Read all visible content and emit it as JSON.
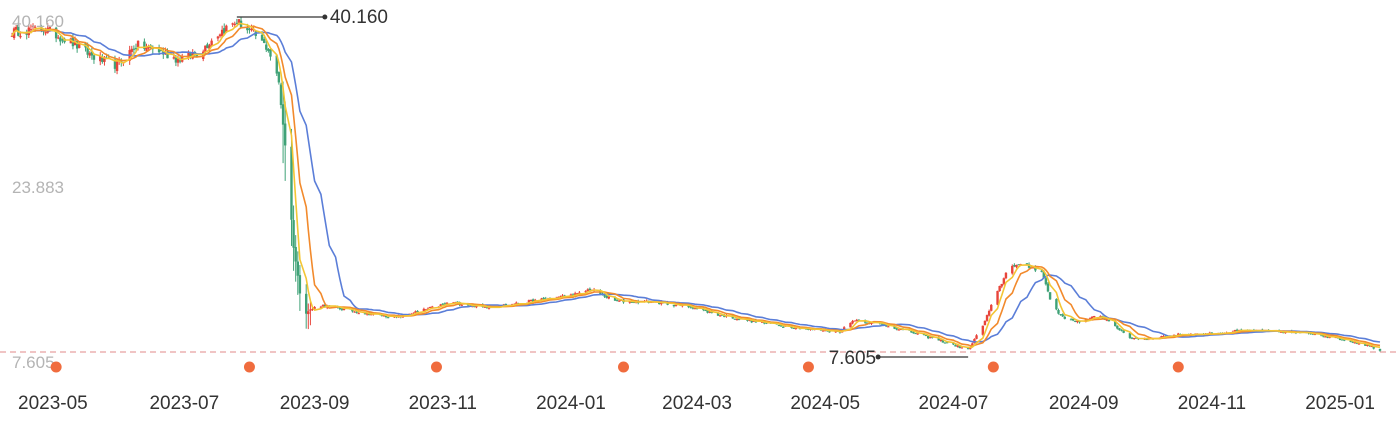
{
  "chart_data": {
    "type": "candlestick",
    "title": "",
    "xlabel": "",
    "ylabel": "",
    "x_range": [
      "2023-04-10",
      "2025-01-20"
    ],
    "ylim": [
      7.605,
      40.16
    ],
    "y_ticks": [
      "40.160",
      "23.883",
      "7.605"
    ],
    "x_ticks": [
      "2023-05",
      "2023-07",
      "2023-09",
      "2023-11",
      "2024-01",
      "2024-03",
      "2024-05",
      "2024-07",
      "2024-09",
      "2024-11",
      "2025-01"
    ],
    "x_tick_dates": [
      "2023-05-01",
      "2023-07-01",
      "2023-09-01",
      "2023-11-01",
      "2024-01-01",
      "2024-03-01",
      "2024-05-01",
      "2024-07-01",
      "2024-09-01",
      "2024-11-01",
      "2025-01-01"
    ],
    "max_annotation": {
      "label": "40.160",
      "date": "2023-07-26",
      "value": 40.16
    },
    "min_annotation": {
      "label": "7.605",
      "date": "2024-07-08",
      "value": 7.605
    },
    "reference_line": {
      "value": 7.605,
      "style": "dashed",
      "color": "#e8a0a0"
    },
    "event_markers": [
      "2023-05-01",
      "2023-08-01",
      "2023-10-29",
      "2024-01-26",
      "2024-04-23",
      "2024-07-20",
      "2024-10-16"
    ],
    "colors": {
      "up": "#e8443a",
      "down": "#3fa277",
      "ma_short": "#f3c534",
      "ma_mid": "#f28a2c",
      "ma_long": "#5b7ed8",
      "marker": "#f06c3e"
    },
    "price_path": [
      [
        "2023-04-10",
        39.0
      ],
      [
        "2023-04-25",
        39.3
      ],
      [
        "2023-05-08",
        38.0
      ],
      [
        "2023-05-20",
        36.4
      ],
      [
        "2023-05-30",
        35.7
      ],
      [
        "2023-06-08",
        37.7
      ],
      [
        "2023-06-18",
        37.2
      ],
      [
        "2023-06-28",
        36.3
      ],
      [
        "2023-07-08",
        37.0
      ],
      [
        "2023-07-18",
        39.0
      ],
      [
        "2023-07-26",
        40.0
      ],
      [
        "2023-08-03",
        38.8
      ],
      [
        "2023-08-10",
        37.3
      ],
      [
        "2023-08-15",
        34.0
      ],
      [
        "2023-08-18",
        28.0
      ],
      [
        "2023-08-22",
        18.0
      ],
      [
        "2023-08-25",
        13.5
      ],
      [
        "2023-08-28",
        11.5
      ],
      [
        "2023-09-03",
        12.2
      ],
      [
        "2023-09-10",
        12.0
      ],
      [
        "2023-09-25",
        11.4
      ],
      [
        "2023-10-10",
        11.0
      ],
      [
        "2023-10-28",
        12.0
      ],
      [
        "2023-11-05",
        12.5
      ],
      [
        "2023-11-20",
        12.0
      ],
      [
        "2023-12-05",
        12.3
      ],
      [
        "2023-12-20",
        12.8
      ],
      [
        "2024-01-05",
        13.3
      ],
      [
        "2024-01-10",
        13.8
      ],
      [
        "2024-01-22",
        12.6
      ],
      [
        "2024-02-10",
        12.5
      ],
      [
        "2024-02-28",
        12.0
      ],
      [
        "2024-03-10",
        11.3
      ],
      [
        "2024-03-25",
        10.7
      ],
      [
        "2024-04-10",
        10.2
      ],
      [
        "2024-04-25",
        9.8
      ],
      [
        "2024-05-08",
        9.6
      ],
      [
        "2024-05-15",
        10.8
      ],
      [
        "2024-05-28",
        10.3
      ],
      [
        "2024-06-10",
        9.6
      ],
      [
        "2024-06-25",
        8.7
      ],
      [
        "2024-07-08",
        7.8
      ],
      [
        "2024-07-15",
        10.2
      ],
      [
        "2024-07-22",
        13.5
      ],
      [
        "2024-07-28",
        16.2
      ],
      [
        "2024-08-05",
        16.0
      ],
      [
        "2024-08-12",
        15.6
      ],
      [
        "2024-08-16",
        12.8
      ],
      [
        "2024-08-20",
        11.4
      ],
      [
        "2024-08-25",
        10.7
      ],
      [
        "2024-09-01",
        10.6
      ],
      [
        "2024-09-08",
        11.2
      ],
      [
        "2024-09-15",
        10.4
      ],
      [
        "2024-09-22",
        9.0
      ],
      [
        "2024-10-01",
        8.9
      ],
      [
        "2024-10-15",
        9.3
      ],
      [
        "2024-11-01",
        9.4
      ],
      [
        "2024-11-15",
        9.7
      ],
      [
        "2024-12-01",
        9.6
      ],
      [
        "2024-12-20",
        9.4
      ],
      [
        "2025-01-05",
        8.7
      ],
      [
        "2025-01-15",
        8.2
      ],
      [
        "2025-01-20",
        7.8
      ]
    ]
  }
}
